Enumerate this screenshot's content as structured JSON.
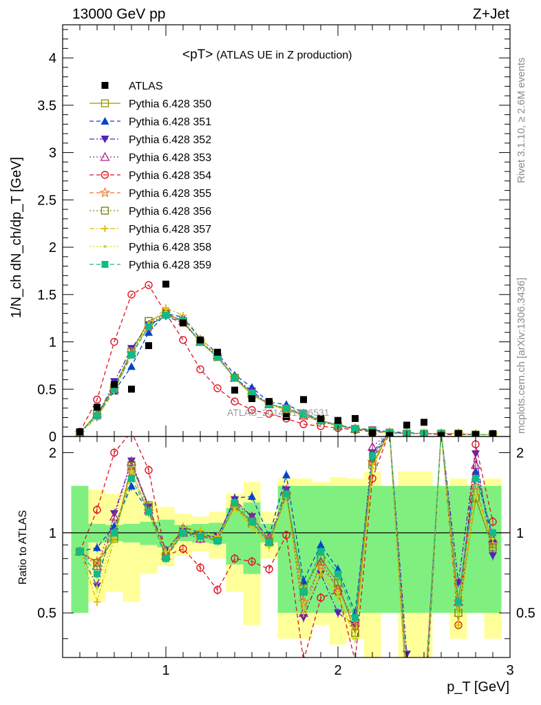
{
  "header": {
    "left_label": "13000 GeV pp",
    "right_label": "Z+Jet"
  },
  "side_labels": {
    "rivet": "Rivet 3.1.10, ≥ 2.6M events",
    "mcplots": "mcplots.cern.ch [arXiv:1306.3436]"
  },
  "watermark": "ATLAS_2014_I1736531",
  "colors": {
    "band_inner": "#7ff07f",
    "band_outer": "#ffff99",
    "data": "#000000"
  },
  "chart_data": {
    "type": "line",
    "title": "<pT>",
    "subtitle": "(ATLAS UE in Z production)",
    "xlabel": "p_T [GeV]",
    "ylabel": "1/N_ch dN_ch/dp_T [GeV]",
    "ratio_ylabel": "Ratio to ATLAS",
    "xlim": [
      0.4,
      3.0
    ],
    "ylim": [
      0,
      4.35
    ],
    "ratio_ylim": [
      0.34,
      2.3
    ],
    "x_ticks": [
      "1",
      "2",
      "3"
    ],
    "y_ticks": [
      "0",
      "0.5",
      "1",
      "1.5",
      "2",
      "2.5",
      "3",
      "3.5",
      "4"
    ],
    "ratio_ticks": [
      "0.5",
      "1",
      "2"
    ],
    "legend_position": "top-left",
    "x": [
      0.5,
      0.6,
      0.7,
      0.8,
      0.9,
      1.0,
      1.1,
      1.2,
      1.3,
      1.4,
      1.5,
      1.6,
      1.7,
      1.8,
      1.9,
      2.0,
      2.1,
      2.2,
      2.3,
      2.4,
      2.5,
      2.6,
      2.7,
      2.8,
      2.9
    ],
    "data_series": {
      "name": "ATLAS",
      "values": [
        0.05,
        0.31,
        0.55,
        0.5,
        0.96,
        1.61,
        1.2,
        1.02,
        0.89,
        0.49,
        0.4,
        0.37,
        0.21,
        0.39,
        0.19,
        0.17,
        0.19,
        0.04,
        0.01,
        0.12,
        0.15,
        0.01,
        0.03,
        0.02,
        0.03
      ],
      "band_inner": [
        0.5,
        0.08,
        0.07,
        0.08,
        0.1,
        0.12,
        0.07,
        0.08,
        0.09,
        0.24,
        0.3,
        0.08,
        0.5,
        0.5,
        0.5,
        0.5,
        0.5,
        0.5,
        0.5,
        0.5,
        0.5,
        0.5,
        0.5,
        0.5,
        0.5
      ],
      "band_outer": [
        0.5,
        0.45,
        0.4,
        0.45,
        0.3,
        0.25,
        0.18,
        0.15,
        0.2,
        0.4,
        0.55,
        0.2,
        0.6,
        0.6,
        0.55,
        0.62,
        0.6,
        0.7,
        0.5,
        0.7,
        0.7,
        0.5,
        0.6,
        0.5,
        0.6
      ]
    },
    "series": [
      {
        "name": "Pythia 6.428 350",
        "color": "#999900",
        "marker": "square-open",
        "dash": "solid",
        "values": [
          0.04,
          0.24,
          0.52,
          0.9,
          1.22,
          1.3,
          1.22,
          1.0,
          0.84,
          0.62,
          0.44,
          0.34,
          0.29,
          0.24,
          0.17,
          0.11,
          0.08,
          0.06,
          0.04,
          0.03,
          0.03,
          0.03,
          0.03,
          0.02,
          0.02
        ],
        "ratio": [
          0.85,
          0.77,
          0.95,
          1.8,
          1.27,
          0.81,
          1.02,
          0.98,
          0.94,
          1.26,
          1.1,
          0.92,
          1.38,
          0.62,
          0.8,
          0.65,
          0.42,
          1.8,
          2.4,
          0.25,
          0.2,
          2.4,
          0.5,
          1.35,
          0.88
        ]
      },
      {
        "name": "Pythia 6.428 351",
        "color": "#0044cc",
        "marker": "triangle-up",
        "dash": "dash",
        "values": [
          0.04,
          0.22,
          0.48,
          0.74,
          1.1,
          1.3,
          1.26,
          1.03,
          0.88,
          0.65,
          0.52,
          0.36,
          0.34,
          0.25,
          0.17,
          0.12,
          0.09,
          0.07,
          0.05,
          0.04,
          0.03,
          0.03,
          0.03,
          0.02,
          0.02
        ],
        "ratio": [
          0.85,
          0.88,
          1.06,
          1.5,
          1.2,
          0.84,
          1.05,
          1.0,
          0.95,
          1.35,
          1.37,
          0.97,
          1.65,
          0.66,
          0.9,
          0.73,
          0.5,
          1.9,
          2.4,
          0.3,
          0.22,
          2.4,
          0.55,
          1.7,
          0.95
        ]
      },
      {
        "name": "Pythia 6.428 352",
        "color": "#5522bb",
        "marker": "triangle-down",
        "dash": "dashdot",
        "values": [
          0.04,
          0.2,
          0.58,
          0.93,
          1.18,
          1.27,
          1.2,
          1.0,
          0.84,
          0.62,
          0.48,
          0.34,
          0.3,
          0.22,
          0.16,
          0.11,
          0.08,
          0.07,
          0.04,
          0.03,
          0.03,
          0.03,
          0.03,
          0.02,
          0.02
        ],
        "ratio": [
          0.85,
          0.63,
          1.18,
          1.86,
          1.25,
          0.86,
          1.02,
          0.97,
          0.97,
          1.33,
          1.15,
          0.94,
          1.45,
          0.48,
          0.7,
          0.5,
          0.45,
          2.0,
          2.4,
          0.35,
          0.2,
          2.4,
          0.65,
          1.98,
          0.82
        ]
      },
      {
        "name": "Pythia 6.428 353",
        "color": "#aa2288",
        "marker": "triangle-up-open",
        "dash": "dot",
        "values": [
          0.04,
          0.24,
          0.5,
          0.88,
          1.18,
          1.3,
          1.22,
          1.0,
          0.86,
          0.62,
          0.46,
          0.34,
          0.3,
          0.22,
          0.17,
          0.11,
          0.08,
          0.06,
          0.04,
          0.03,
          0.03,
          0.03,
          0.03,
          0.02,
          0.02
        ],
        "ratio": [
          0.85,
          0.75,
          1.15,
          1.85,
          1.22,
          0.82,
          1.0,
          0.95,
          0.97,
          1.3,
          1.15,
          0.93,
          1.45,
          0.5,
          0.78,
          0.62,
          0.46,
          2.1,
          2.4,
          0.3,
          0.22,
          2.4,
          0.55,
          1.8,
          0.95
        ]
      },
      {
        "name": "Pythia 6.428 354",
        "color": "#dd1122",
        "marker": "circle-open",
        "dash": "dash",
        "values": [
          0.05,
          0.39,
          1.0,
          1.5,
          1.6,
          1.3,
          1.02,
          0.71,
          0.51,
          0.37,
          0.28,
          0.24,
          0.19,
          0.13,
          0.11,
          0.09,
          0.07,
          0.05,
          0.04,
          0.03,
          0.03,
          0.02,
          0.02,
          0.02,
          0.02
        ],
        "ratio": [
          0.85,
          1.22,
          2.0,
          2.4,
          1.72,
          0.82,
          0.87,
          0.74,
          0.61,
          0.8,
          0.78,
          0.73,
          0.98,
          0.33,
          0.57,
          0.6,
          0.33,
          1.6,
          2.4,
          0.25,
          0.18,
          2.4,
          0.45,
          2.15,
          1.1
        ]
      },
      {
        "name": "Pythia 6.428 355",
        "color": "#ee7722",
        "marker": "star-open",
        "dash": "dash",
        "values": [
          0.04,
          0.22,
          0.5,
          0.88,
          1.15,
          1.3,
          1.2,
          1.0,
          0.84,
          0.62,
          0.44,
          0.34,
          0.28,
          0.22,
          0.17,
          0.11,
          0.08,
          0.06,
          0.04,
          0.03,
          0.03,
          0.03,
          0.03,
          0.02,
          0.02
        ],
        "ratio": [
          0.85,
          0.78,
          1.0,
          1.7,
          1.2,
          0.82,
          1.0,
          0.98,
          0.95,
          1.25,
          1.1,
          0.95,
          1.38,
          0.55,
          0.75,
          0.62,
          0.45,
          1.85,
          2.4,
          0.3,
          0.2,
          2.4,
          0.55,
          1.5,
          0.9
        ]
      },
      {
        "name": "Pythia 6.428 356",
        "color": "#778811",
        "marker": "square-open",
        "dash": "dot",
        "values": [
          0.04,
          0.24,
          0.52,
          0.9,
          1.22,
          1.3,
          1.22,
          1.0,
          0.84,
          0.62,
          0.44,
          0.34,
          0.29,
          0.24,
          0.17,
          0.11,
          0.08,
          0.06,
          0.04,
          0.03,
          0.03,
          0.03,
          0.03,
          0.02,
          0.02
        ],
        "ratio": [
          0.85,
          0.77,
          0.97,
          1.78,
          1.25,
          0.82,
          1.02,
          0.98,
          0.94,
          1.26,
          1.08,
          0.92,
          1.38,
          0.6,
          0.8,
          0.65,
          0.42,
          1.8,
          2.4,
          0.25,
          0.2,
          2.4,
          0.5,
          1.35,
          0.88
        ]
      },
      {
        "name": "Pythia 6.428 357",
        "color": "#ddbb00",
        "marker": "cross",
        "dash": "dashdot",
        "values": [
          0.04,
          0.2,
          0.48,
          0.86,
          1.18,
          1.36,
          1.28,
          1.04,
          0.86,
          0.62,
          0.44,
          0.34,
          0.29,
          0.22,
          0.17,
          0.11,
          0.08,
          0.06,
          0.04,
          0.03,
          0.03,
          0.03,
          0.03,
          0.02,
          0.02
        ],
        "ratio": [
          0.85,
          0.55,
          0.95,
          1.7,
          1.18,
          0.85,
          1.05,
          1.02,
          0.97,
          1.25,
          1.05,
          0.9,
          1.38,
          0.5,
          0.7,
          0.58,
          0.4,
          1.75,
          2.4,
          0.25,
          0.2,
          2.4,
          0.45,
          1.4,
          0.95
        ]
      },
      {
        "name": "Pythia 6.428 358",
        "color": "#bbdd22",
        "marker": "dot",
        "dash": "dot",
        "values": [
          0.04,
          0.2,
          0.48,
          0.88,
          1.2,
          1.32,
          1.2,
          1.0,
          0.82,
          0.6,
          0.44,
          0.34,
          0.28,
          0.22,
          0.16,
          0.11,
          0.08,
          0.06,
          0.04,
          0.03,
          0.03,
          0.03,
          0.03,
          0.02,
          0.02
        ],
        "ratio": [
          0.85,
          0.62,
          0.97,
          1.68,
          1.18,
          0.84,
          1.0,
          0.97,
          0.94,
          1.22,
          1.05,
          0.88,
          1.35,
          0.52,
          0.72,
          0.6,
          0.4,
          1.75,
          2.4,
          0.25,
          0.2,
          2.4,
          0.5,
          1.4,
          0.95
        ]
      },
      {
        "name": "Pythia 6.428 359",
        "color": "#11bb88",
        "marker": "square",
        "dash": "dash",
        "values": [
          0.04,
          0.22,
          0.5,
          0.86,
          1.16,
          1.28,
          1.22,
          1.0,
          0.84,
          0.62,
          0.46,
          0.34,
          0.3,
          0.24,
          0.17,
          0.12,
          0.08,
          0.06,
          0.04,
          0.03,
          0.03,
          0.03,
          0.03,
          0.02,
          0.02
        ],
        "ratio": [
          0.85,
          0.7,
          1.0,
          1.6,
          1.2,
          0.8,
          1.0,
          0.97,
          0.93,
          1.3,
          1.1,
          0.92,
          1.4,
          0.6,
          0.85,
          0.7,
          0.48,
          1.95,
          2.4,
          0.3,
          0.2,
          2.4,
          0.55,
          1.6,
          1.0
        ]
      }
    ]
  }
}
